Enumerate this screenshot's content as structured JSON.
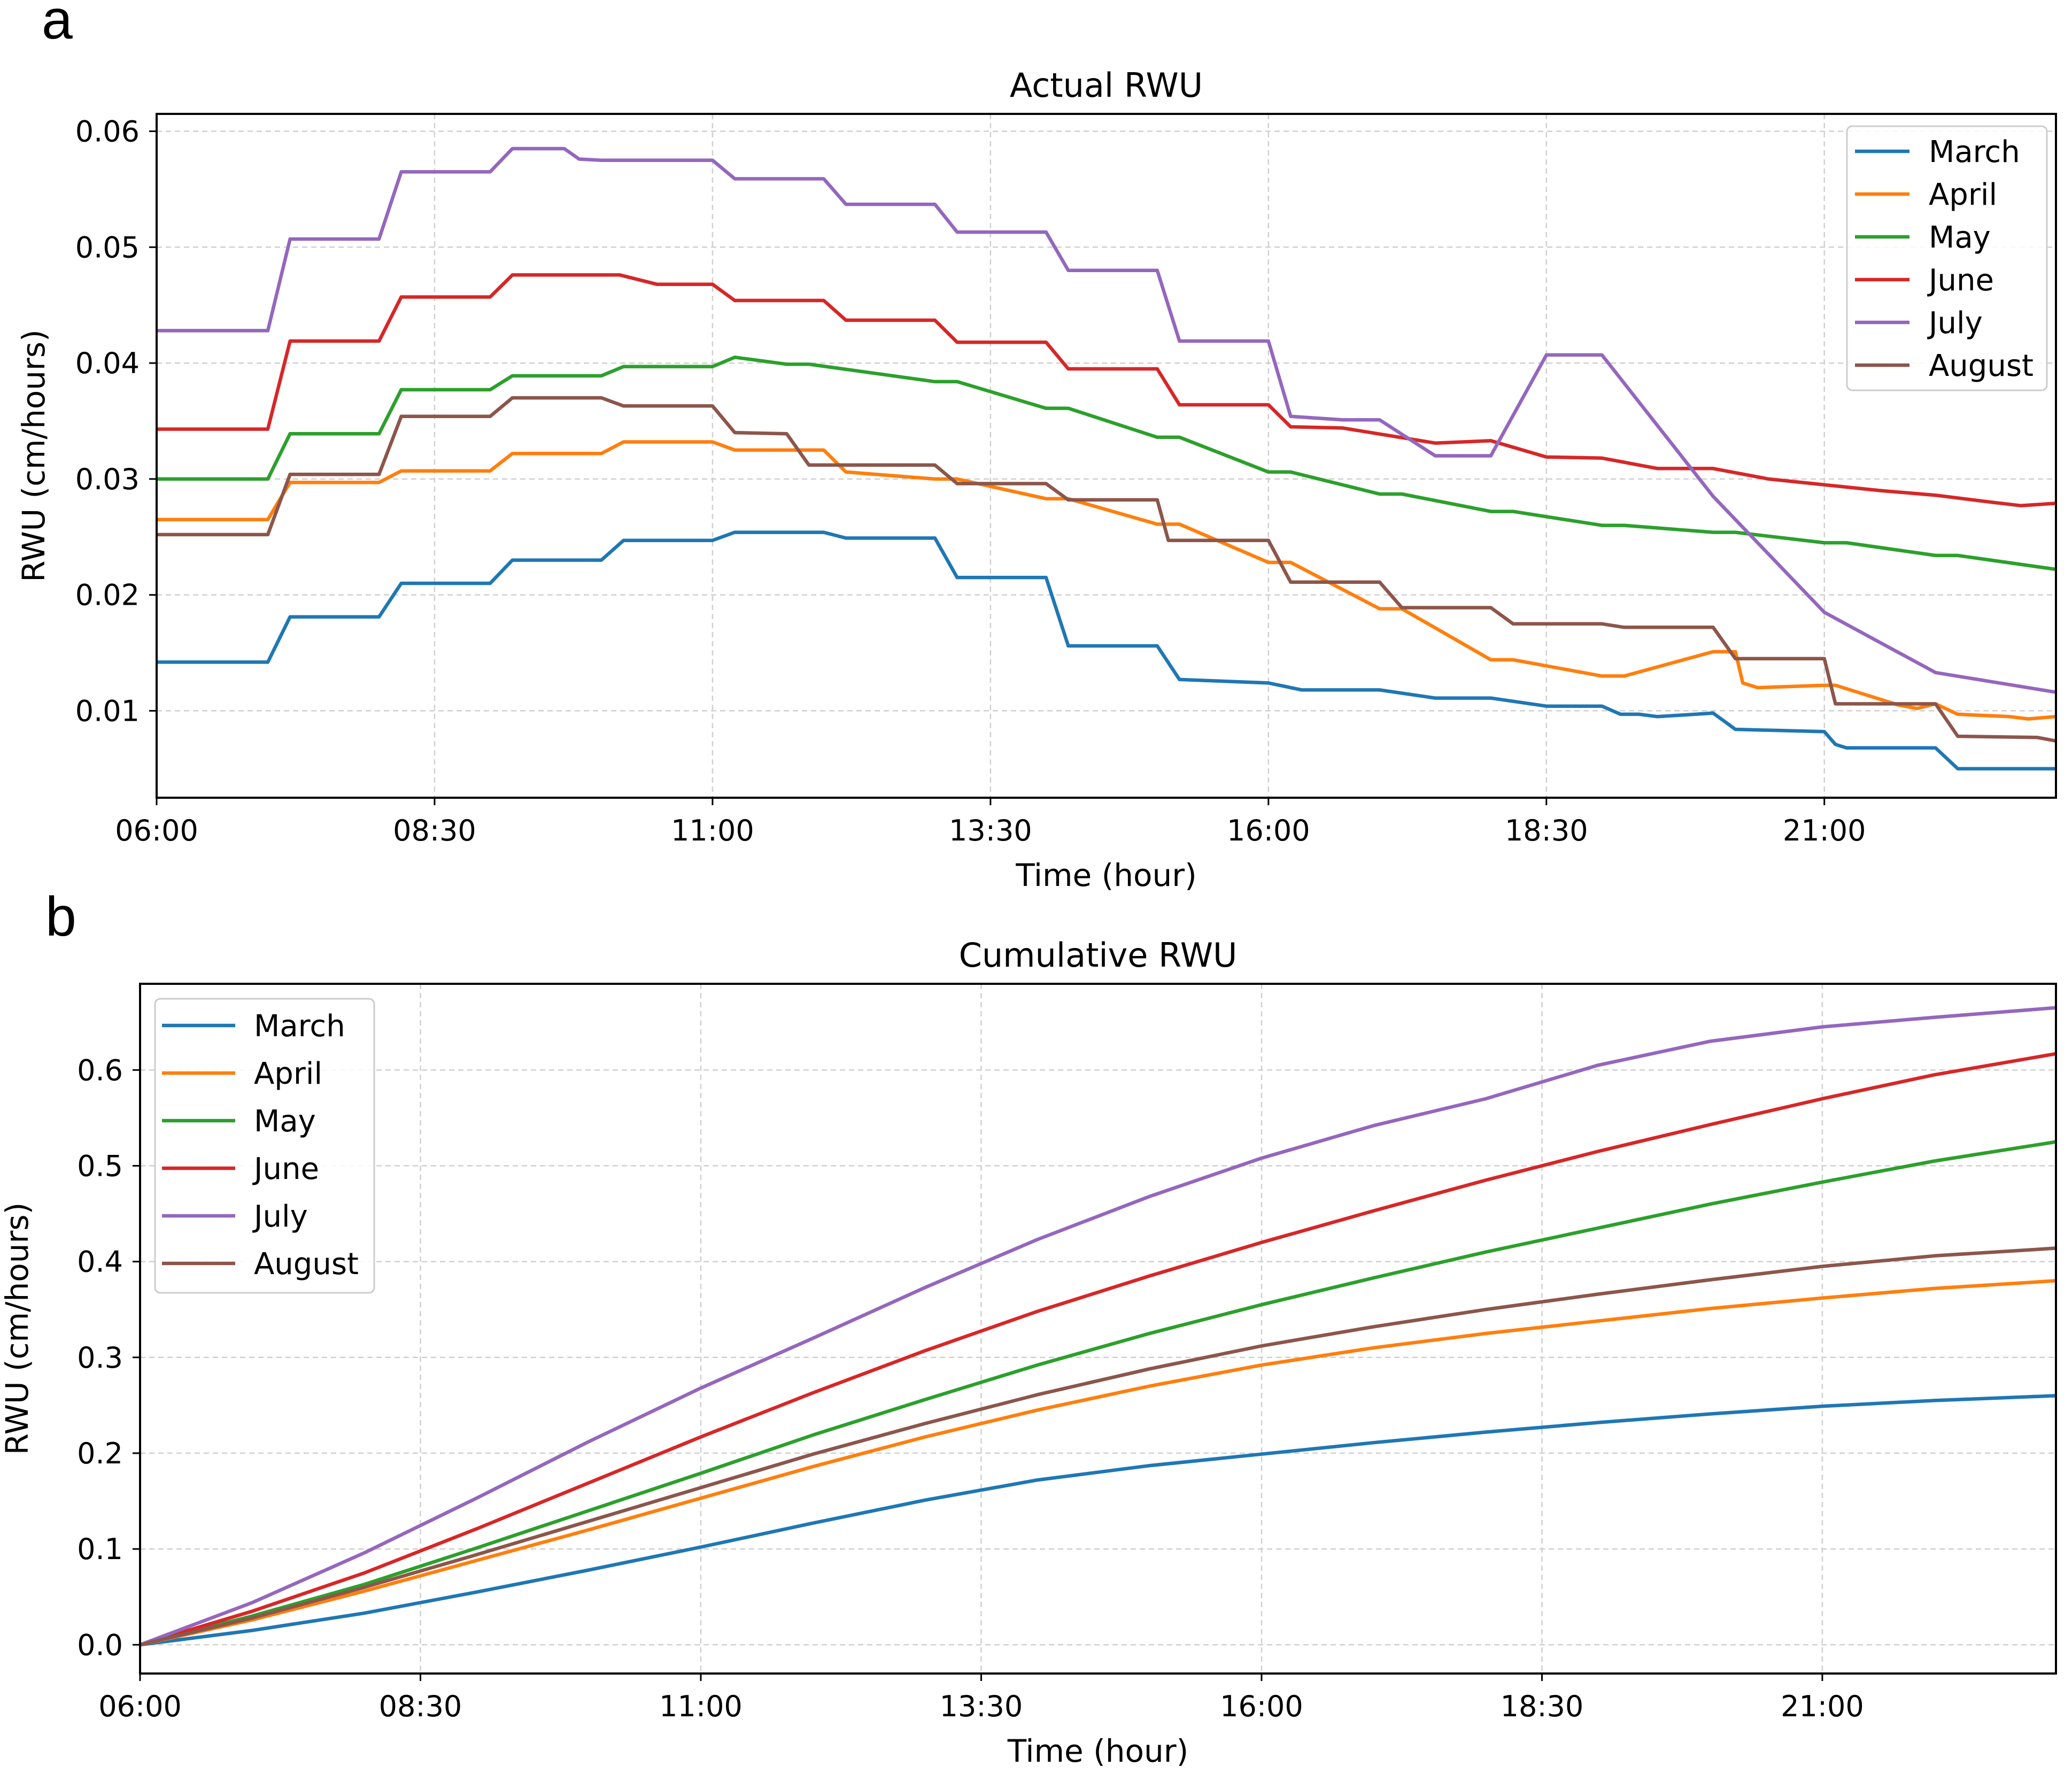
{
  "panel_labels": [
    "a",
    "b"
  ],
  "chart_data": [
    {
      "type": "line",
      "title": "Actual RWU",
      "xlabel": "Time (hour)",
      "ylabel": "RWU (cm/hours)",
      "x_units": "minutes since midnight",
      "xlim": [
        360,
        1385
      ],
      "ylim": [
        0.0025,
        0.0615
      ],
      "x_ticks": [
        {
          "value": 360,
          "label": "06:00"
        },
        {
          "value": 510,
          "label": "08:30"
        },
        {
          "value": 660,
          "label": "11:00"
        },
        {
          "value": 810,
          "label": "13:30"
        },
        {
          "value": 960,
          "label": "16:00"
        },
        {
          "value": 1110,
          "label": "18:30"
        },
        {
          "value": 1260,
          "label": "21:00"
        }
      ],
      "y_ticks": [
        {
          "value": 0.01,
          "label": "0.01"
        },
        {
          "value": 0.02,
          "label": "0.02"
        },
        {
          "value": 0.03,
          "label": "0.03"
        },
        {
          "value": 0.04,
          "label": "0.04"
        },
        {
          "value": 0.05,
          "label": "0.05"
        },
        {
          "value": 0.06,
          "label": "0.06"
        }
      ],
      "grid": true,
      "legend_position": "top-right",
      "series": [
        {
          "name": "March",
          "color": "#1f77b4",
          "x": [
            360,
            420,
            432,
            480,
            492,
            540,
            552,
            570,
            600,
            612,
            660,
            672,
            720,
            732,
            780,
            792,
            840,
            852,
            900,
            912,
            960,
            978,
            1020,
            1050,
            1080,
            1110,
            1140,
            1150,
            1160,
            1170,
            1200,
            1212,
            1260,
            1266,
            1272,
            1320,
            1332,
            1385
          ],
          "y": [
            0.0142,
            0.0142,
            0.0181,
            0.0181,
            0.021,
            0.021,
            0.023,
            0.023,
            0.023,
            0.0247,
            0.0247,
            0.0254,
            0.0254,
            0.0249,
            0.0249,
            0.0215,
            0.0215,
            0.0156,
            0.0156,
            0.0127,
            0.0124,
            0.0118,
            0.0118,
            0.0111,
            0.0111,
            0.0104,
            0.0104,
            0.0097,
            0.0097,
            0.0095,
            0.0098,
            0.0084,
            0.0082,
            0.0071,
            0.0068,
            0.0068,
            0.005,
            0.005
          ]
        },
        {
          "name": "April",
          "color": "#ff7f0e",
          "x": [
            360,
            420,
            432,
            480,
            492,
            540,
            552,
            600,
            612,
            660,
            672,
            720,
            732,
            780,
            792,
            840,
            852,
            900,
            912,
            960,
            972,
            1020,
            1032,
            1080,
            1092,
            1140,
            1152,
            1200,
            1212,
            1216,
            1224,
            1260,
            1266,
            1300,
            1310,
            1320,
            1332,
            1360,
            1370,
            1385
          ],
          "y": [
            0.0265,
            0.0265,
            0.0297,
            0.0297,
            0.0307,
            0.0307,
            0.0322,
            0.0322,
            0.0332,
            0.0332,
            0.0325,
            0.0325,
            0.0306,
            0.03,
            0.03,
            0.0283,
            0.0283,
            0.0261,
            0.0261,
            0.0228,
            0.0228,
            0.0188,
            0.0188,
            0.0144,
            0.0144,
            0.013,
            0.013,
            0.0151,
            0.0151,
            0.0124,
            0.012,
            0.0122,
            0.0122,
            0.0105,
            0.0102,
            0.0106,
            0.0097,
            0.0095,
            0.0093,
            0.0095
          ]
        },
        {
          "name": "May",
          "color": "#2ca02c",
          "x": [
            360,
            420,
            432,
            480,
            492,
            540,
            552,
            600,
            612,
            660,
            672,
            700,
            712,
            780,
            792,
            840,
            852,
            900,
            912,
            960,
            972,
            1020,
            1032,
            1080,
            1092,
            1140,
            1152,
            1200,
            1212,
            1260,
            1272,
            1320,
            1332,
            1385
          ],
          "y": [
            0.03,
            0.03,
            0.0339,
            0.0339,
            0.0377,
            0.0377,
            0.0389,
            0.0389,
            0.0397,
            0.0397,
            0.0405,
            0.0399,
            0.0399,
            0.0384,
            0.0384,
            0.0361,
            0.0361,
            0.0336,
            0.0336,
            0.0306,
            0.0306,
            0.0287,
            0.0287,
            0.0272,
            0.0272,
            0.026,
            0.026,
            0.0254,
            0.0254,
            0.0245,
            0.0245,
            0.0234,
            0.0234,
            0.0222
          ]
        },
        {
          "name": "June",
          "color": "#d62728",
          "x": [
            360,
            420,
            432,
            480,
            492,
            540,
            552,
            610,
            630,
            660,
            672,
            720,
            732,
            780,
            792,
            840,
            852,
            900,
            912,
            960,
            972,
            1000,
            1050,
            1080,
            1110,
            1140,
            1170,
            1200,
            1230,
            1290,
            1320,
            1350,
            1366,
            1385
          ],
          "y": [
            0.0343,
            0.0343,
            0.0419,
            0.0419,
            0.0457,
            0.0457,
            0.0476,
            0.0476,
            0.0468,
            0.0468,
            0.0454,
            0.0454,
            0.0437,
            0.0437,
            0.0418,
            0.0418,
            0.0395,
            0.0395,
            0.0364,
            0.0364,
            0.0345,
            0.0344,
            0.0331,
            0.0333,
            0.0319,
            0.0318,
            0.0309,
            0.0309,
            0.03,
            0.029,
            0.0286,
            0.028,
            0.0277,
            0.0279
          ]
        },
        {
          "name": "July",
          "color": "#9467bd",
          "x": [
            360,
            420,
            432,
            480,
            492,
            540,
            552,
            580,
            588,
            600,
            660,
            672,
            720,
            732,
            780,
            792,
            840,
            852,
            900,
            912,
            960,
            972,
            1000,
            1020,
            1050,
            1080,
            1110,
            1140,
            1200,
            1260,
            1320,
            1385
          ],
          "y": [
            0.0428,
            0.0428,
            0.0507,
            0.0507,
            0.0565,
            0.0565,
            0.0585,
            0.0585,
            0.0576,
            0.0575,
            0.0575,
            0.0559,
            0.0559,
            0.0537,
            0.0537,
            0.0513,
            0.0513,
            0.048,
            0.048,
            0.0419,
            0.0419,
            0.0354,
            0.0351,
            0.0351,
            0.032,
            0.032,
            0.0407,
            0.0407,
            0.0285,
            0.0185,
            0.0133,
            0.0116
          ]
        },
        {
          "name": "August",
          "color": "#8c564b",
          "x": [
            360,
            420,
            432,
            480,
            492,
            540,
            552,
            600,
            612,
            660,
            672,
            700,
            712,
            780,
            792,
            840,
            852,
            900,
            906,
            960,
            972,
            1020,
            1032,
            1080,
            1092,
            1140,
            1152,
            1200,
            1212,
            1260,
            1266,
            1320,
            1332,
            1375,
            1385
          ],
          "y": [
            0.0252,
            0.0252,
            0.0304,
            0.0304,
            0.0354,
            0.0354,
            0.037,
            0.037,
            0.0363,
            0.0363,
            0.034,
            0.0339,
            0.0312,
            0.0312,
            0.0296,
            0.0296,
            0.0282,
            0.0282,
            0.0247,
            0.0247,
            0.0211,
            0.0211,
            0.0189,
            0.0189,
            0.0175,
            0.0175,
            0.0172,
            0.0172,
            0.0145,
            0.0145,
            0.0106,
            0.0106,
            0.0078,
            0.0077,
            0.0074
          ]
        }
      ]
    },
    {
      "type": "line",
      "title": "Cumulative RWU",
      "xlabel": "Time (hour)",
      "ylabel": "RWU (cm/hours)",
      "x_units": "minutes since midnight",
      "xlim": [
        360,
        1385
      ],
      "ylim": [
        -0.03,
        0.69
      ],
      "x_ticks": [
        {
          "value": 360,
          "label": "06:00"
        },
        {
          "value": 510,
          "label": "08:30"
        },
        {
          "value": 660,
          "label": "11:00"
        },
        {
          "value": 810,
          "label": "13:30"
        },
        {
          "value": 960,
          "label": "16:00"
        },
        {
          "value": 1110,
          "label": "18:30"
        },
        {
          "value": 1260,
          "label": "21:00"
        }
      ],
      "y_ticks": [
        {
          "value": 0.0,
          "label": "0.0"
        },
        {
          "value": 0.1,
          "label": "0.1"
        },
        {
          "value": 0.2,
          "label": "0.2"
        },
        {
          "value": 0.3,
          "label": "0.3"
        },
        {
          "value": 0.4,
          "label": "0.4"
        },
        {
          "value": 0.5,
          "label": "0.5"
        },
        {
          "value": 0.6,
          "label": "0.6"
        }
      ],
      "grid": true,
      "legend_position": "top-left",
      "series": [
        {
          "name": "March",
          "color": "#1f77b4",
          "x": [
            360,
            420,
            480,
            540,
            600,
            660,
            720,
            780,
            840,
            900,
            960,
            1020,
            1080,
            1140,
            1200,
            1260,
            1320,
            1385
          ],
          "y": [
            0.0,
            0.015,
            0.033,
            0.055,
            0.078,
            0.102,
            0.127,
            0.151,
            0.172,
            0.187,
            0.199,
            0.211,
            0.222,
            0.232,
            0.241,
            0.249,
            0.255,
            0.26
          ]
        },
        {
          "name": "April",
          "color": "#ff7f0e",
          "x": [
            360,
            420,
            480,
            540,
            600,
            660,
            720,
            780,
            840,
            900,
            960,
            1020,
            1080,
            1140,
            1200,
            1260,
            1320,
            1385
          ],
          "y": [
            0.0,
            0.026,
            0.056,
            0.088,
            0.12,
            0.153,
            0.186,
            0.217,
            0.245,
            0.27,
            0.292,
            0.31,
            0.325,
            0.338,
            0.351,
            0.362,
            0.372,
            0.38
          ]
        },
        {
          "name": "May",
          "color": "#2ca02c",
          "x": [
            360,
            420,
            480,
            540,
            600,
            660,
            720,
            780,
            840,
            900,
            960,
            1020,
            1080,
            1140,
            1200,
            1260,
            1320,
            1385
          ],
          "y": [
            0.0,
            0.03,
            0.063,
            0.101,
            0.14,
            0.179,
            0.219,
            0.256,
            0.292,
            0.325,
            0.355,
            0.383,
            0.41,
            0.435,
            0.46,
            0.483,
            0.505,
            0.525
          ]
        },
        {
          "name": "June",
          "color": "#d62728",
          "x": [
            360,
            420,
            480,
            540,
            600,
            660,
            720,
            780,
            840,
            900,
            960,
            1020,
            1080,
            1140,
            1200,
            1260,
            1320,
            1385
          ],
          "y": [
            0.0,
            0.035,
            0.075,
            0.121,
            0.169,
            0.217,
            0.263,
            0.307,
            0.348,
            0.385,
            0.42,
            0.453,
            0.485,
            0.515,
            0.543,
            0.57,
            0.595,
            0.617
          ]
        },
        {
          "name": "July",
          "color": "#9467bd",
          "x": [
            360,
            420,
            480,
            540,
            600,
            660,
            720,
            780,
            840,
            900,
            960,
            1020,
            1080,
            1140,
            1200,
            1260,
            1320,
            1385
          ],
          "y": [
            0.0,
            0.044,
            0.096,
            0.153,
            0.212,
            0.268,
            0.32,
            0.373,
            0.423,
            0.468,
            0.508,
            0.542,
            0.57,
            0.605,
            0.63,
            0.645,
            0.655,
            0.665
          ]
        },
        {
          "name": "August",
          "color": "#8c564b",
          "x": [
            360,
            420,
            480,
            540,
            600,
            660,
            720,
            780,
            840,
            900,
            960,
            1020,
            1080,
            1140,
            1200,
            1260,
            1320,
            1385
          ],
          "y": [
            0.0,
            0.028,
            0.06,
            0.094,
            0.129,
            0.164,
            0.199,
            0.231,
            0.261,
            0.288,
            0.312,
            0.332,
            0.35,
            0.366,
            0.381,
            0.395,
            0.406,
            0.414
          ]
        }
      ]
    }
  ]
}
